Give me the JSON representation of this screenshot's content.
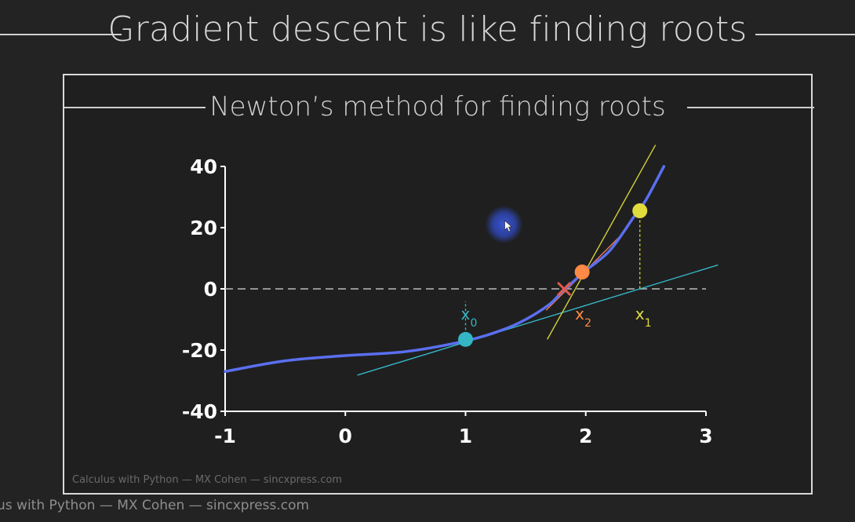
{
  "title": "Gradient descent is like finding roots",
  "subtitle": "Newton’s method for finding roots",
  "credit_inner": "Calculus with Python — MX Cohen — sincxpress.com",
  "credit_outer": "us with Python — MX Cohen — sincxpress.com",
  "chart_data": {
    "type": "line",
    "xlim": [
      -1,
      3
    ],
    "ylim": [
      -40,
      40
    ],
    "xticks": [
      -1,
      0,
      1,
      2,
      3
    ],
    "yticks": [
      -40,
      -20,
      0,
      20,
      40
    ],
    "grid": false,
    "zero_line": {
      "y": 0,
      "style": "dashed",
      "color": "#bbbbbb"
    },
    "function_curve": {
      "color": "#5a6ff0",
      "points": [
        [
          -1,
          -27.0
        ],
        [
          -0.5,
          -23.5
        ],
        [
          0,
          -21.8
        ],
        [
          0.5,
          -20.5
        ],
        [
          1,
          -17.0
        ],
        [
          1.3,
          -13.5
        ],
        [
          1.5,
          -10.0
        ],
        [
          1.7,
          -5.0
        ],
        [
          1.8,
          -1.0
        ],
        [
          1.9,
          2.5
        ],
        [
          2,
          6.0
        ],
        [
          2.2,
          12.5
        ],
        [
          2.4,
          23.5
        ],
        [
          2.5,
          29.0
        ],
        [
          2.65,
          40.0
        ]
      ]
    },
    "tangent_lines": [
      {
        "color": "#34b6c4",
        "from": [
          0.1,
          -28.2
        ],
        "to": [
          3.1,
          7.8
        ]
      },
      {
        "color": "#d3d038",
        "from": [
          1.68,
          -16.5
        ],
        "to": [
          2.58,
          47.0
        ]
      },
      {
        "color": "#f07a4a",
        "from": [
          1.67,
          -7.0
        ],
        "to": [
          2.28,
          17.0
        ]
      }
    ],
    "guides": [
      {
        "color": "#34b6c4",
        "x": 1.0,
        "y_from": -16.5,
        "y_to": -4.0
      },
      {
        "color": "#d3d038",
        "x": 2.45,
        "y_from": 25.5,
        "y_to": 0
      }
    ],
    "points": [
      {
        "label": "x",
        "sub": "0",
        "x": 1.0,
        "y": -16.5,
        "color": "#34b6c4",
        "marker": "circle",
        "label_x": 1.0,
        "label_y": -4.3
      },
      {
        "label": "x",
        "sub": "1",
        "x": 2.45,
        "y": 25.5,
        "color": "#e1dc3e",
        "marker": "circle",
        "label_x": 2.45,
        "label_y": -4.3
      },
      {
        "label": "x",
        "sub": "2",
        "x": 1.97,
        "y": 5.5,
        "color": "#ff8a45",
        "marker": "circle",
        "label_x": 1.95,
        "label_y": -4.3
      },
      {
        "x": 1.82,
        "y": 0,
        "color": "#e15b4f",
        "marker": "cross"
      }
    ],
    "cursor": {
      "x": 1.32,
      "y": 21
    }
  }
}
